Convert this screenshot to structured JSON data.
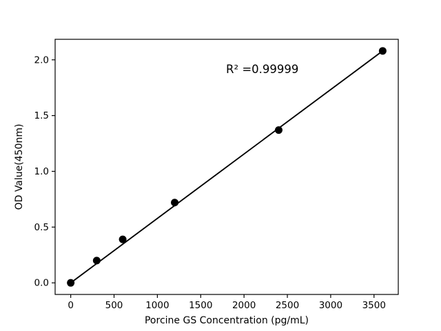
{
  "figure": {
    "background": "#ffffff",
    "text_color": "#000000"
  },
  "chart_data": {
    "type": "scatter",
    "title": "",
    "xlabel": "Porcine GS Concentration (pg/mL)",
    "ylabel": "OD Value(450nm)",
    "annotation": "R² =0.99999",
    "r_squared": 0.99999,
    "x": [
      0,
      300,
      600,
      1200,
      2400,
      3600
    ],
    "y": [
      0.0,
      0.2,
      0.39,
      0.72,
      1.37,
      2.08
    ],
    "fit_line": true,
    "xlim": [
      -180,
      3780
    ],
    "ylim": [
      -0.104,
      2.184
    ],
    "xtick_values": [
      0,
      500,
      1000,
      1500,
      2000,
      2500,
      3000,
      3500
    ],
    "xtick_labels": [
      "0",
      "500",
      "1000",
      "1500",
      "2000",
      "2500",
      "3000",
      "3500"
    ],
    "ytick_values": [
      0.0,
      0.5,
      1.0,
      1.5,
      2.0
    ],
    "ytick_labels": [
      "0.0",
      "0.5",
      "1.0",
      "1.5",
      "2.0"
    ],
    "grid": false,
    "legend_position": "none",
    "line_color": "#000000",
    "marker_color": "#000000",
    "axis_color": "#000000"
  }
}
